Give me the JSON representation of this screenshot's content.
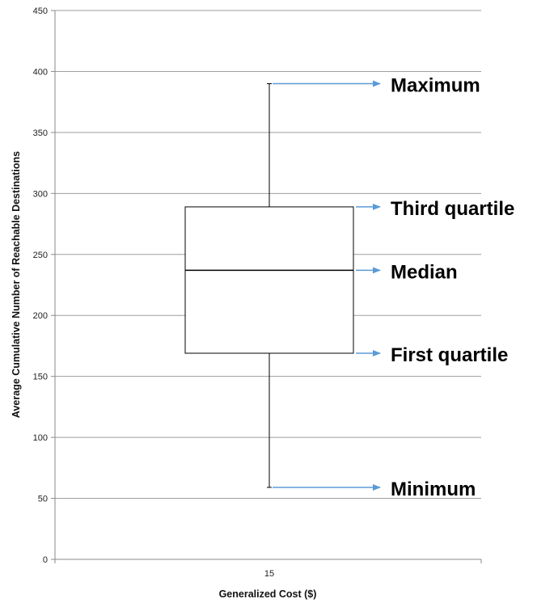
{
  "chart_data": {
    "type": "box",
    "xlabel": "Generalized Cost ($)",
    "ylabel": "Average Cumulative Number of Reachable Destinations",
    "ylim": [
      0,
      450
    ],
    "yticks": [
      0,
      50,
      100,
      150,
      200,
      250,
      300,
      350,
      400,
      450
    ],
    "grid": true,
    "categories": [
      "15"
    ],
    "box": {
      "minimum": 59,
      "first_quartile": 169,
      "median": 237,
      "third_quartile": 289,
      "maximum": 390
    },
    "annotations": [
      {
        "label": "Maximum",
        "target": "maximum"
      },
      {
        "label": "Third quartile",
        "target": "third_quartile"
      },
      {
        "label": "Median",
        "target": "median"
      },
      {
        "label": "First quartile",
        "target": "first_quartile"
      },
      {
        "label": "Minimum",
        "target": "minimum"
      }
    ],
    "colors": {
      "box": "#000000",
      "grid": "#9e9e9e",
      "arrow": "#5b9bd5"
    }
  }
}
